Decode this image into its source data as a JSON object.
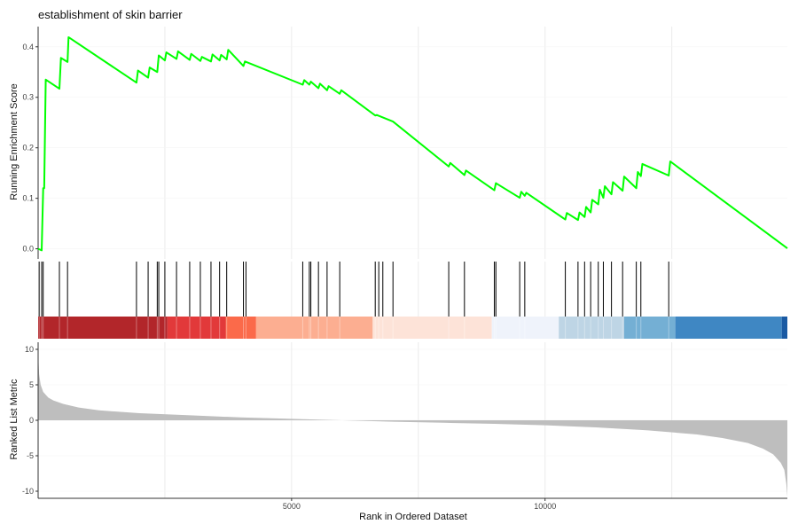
{
  "chart_data": {
    "type": "line",
    "title": "establishment of skin barrier",
    "xlabel": "Rank in Ordered Dataset",
    "xlim": [
      0,
      14780
    ],
    "x_ticks": [
      {
        "value": 5000,
        "label": "5000"
      },
      {
        "value": 10000,
        "label": "10000"
      }
    ],
    "grid": true,
    "enrichment_panel": {
      "ylabel": "Running Enrichment Score",
      "ylim": [
        -0.02,
        0.44
      ],
      "y_ticks": [
        {
          "value": 0.0,
          "label": "0.0"
        },
        {
          "value": 0.1,
          "label": "0.1"
        },
        {
          "value": 0.2,
          "label": "0.2"
        },
        {
          "value": 0.3,
          "label": "0.3"
        },
        {
          "value": 0.4,
          "label": "0.4"
        }
      ],
      "line_color": "#00ff00",
      "x": [
        0,
        70,
        100,
        120,
        150,
        420,
        450,
        580,
        600,
        1940,
        1970,
        2170,
        2200,
        2350,
        2380,
        2500,
        2530,
        2730,
        2760,
        2990,
        3020,
        3200,
        3230,
        3410,
        3440,
        3580,
        3610,
        3720,
        3750,
        4050,
        4080,
        5220,
        5250,
        5350,
        5380,
        5530,
        5560,
        5700,
        5730,
        5950,
        5980,
        6650,
        6680,
        7000,
        8100,
        8130,
        8410,
        8440,
        9000,
        9030,
        9500,
        9530,
        9600,
        9630,
        10400,
        10430,
        10650,
        10680,
        10780,
        10810,
        10900,
        10930,
        11050,
        11080,
        11150,
        11180,
        11310,
        11340,
        11530,
        11560,
        11800,
        11830,
        11890,
        11920,
        12440,
        12470,
        14780
      ],
      "y": [
        0.0,
        -0.003,
        0.12,
        0.12,
        0.335,
        0.317,
        0.378,
        0.37,
        0.419,
        0.329,
        0.353,
        0.339,
        0.359,
        0.35,
        0.383,
        0.373,
        0.389,
        0.376,
        0.391,
        0.374,
        0.386,
        0.372,
        0.38,
        0.371,
        0.385,
        0.373,
        0.384,
        0.375,
        0.394,
        0.362,
        0.371,
        0.325,
        0.334,
        0.325,
        0.331,
        0.318,
        0.327,
        0.314,
        0.322,
        0.307,
        0.314,
        0.264,
        0.265,
        0.252,
        0.163,
        0.17,
        0.146,
        0.155,
        0.116,
        0.13,
        0.101,
        0.113,
        0.105,
        0.111,
        0.058,
        0.071,
        0.057,
        0.072,
        0.063,
        0.083,
        0.072,
        0.097,
        0.088,
        0.117,
        0.101,
        0.124,
        0.108,
        0.132,
        0.115,
        0.143,
        0.12,
        0.152,
        0.144,
        0.168,
        0.145,
        0.173,
        0.001
      ]
    },
    "rug_panel": {
      "hit_ranks": [
        20,
        70,
        100,
        420,
        580,
        1940,
        2170,
        2350,
        2380,
        2500,
        2730,
        2990,
        3200,
        3410,
        3580,
        3720,
        4050,
        4100,
        5220,
        5350,
        5380,
        5530,
        5700,
        5950,
        6650,
        6720,
        6800,
        7000,
        8100,
        8410,
        9000,
        9030,
        9500,
        9600,
        10400,
        10650,
        10780,
        10900,
        11050,
        11150,
        11310,
        11530,
        11800,
        11890,
        12440
      ],
      "color_bands": [
        {
          "start": 0,
          "end": 2550,
          "color": "#b2262a"
        },
        {
          "start": 2550,
          "end": 3700,
          "color": "#e2393a"
        },
        {
          "start": 3700,
          "end": 4300,
          "color": "#fb6a4a"
        },
        {
          "start": 4300,
          "end": 6600,
          "color": "#fcae91"
        },
        {
          "start": 6600,
          "end": 8950,
          "color": "#fde3d8"
        },
        {
          "start": 8950,
          "end": 10270,
          "color": "#eff3fb"
        },
        {
          "start": 10270,
          "end": 11560,
          "color": "#bed5e5"
        },
        {
          "start": 11560,
          "end": 12570,
          "color": "#74afd4"
        },
        {
          "start": 12570,
          "end": 14670,
          "color": "#3f87c3"
        },
        {
          "start": 14670,
          "end": 14780,
          "color": "#1a5aa3"
        }
      ]
    },
    "ranked_panel": {
      "ylabel": "Ranked List Metric",
      "ylim": [
        -11,
        11
      ],
      "y_ticks": [
        {
          "value": 10,
          "label": "10"
        },
        {
          "value": 5,
          "label": "5"
        },
        {
          "value": 0,
          "label": "0"
        },
        {
          "value": -5,
          "label": "-5"
        },
        {
          "value": -10,
          "label": "-10"
        }
      ],
      "fill_color": "#bebebe",
      "x": [
        0,
        20,
        50,
        100,
        200,
        300,
        500,
        800,
        1200,
        2000,
        3000,
        4000,
        5000,
        6000,
        7000,
        8000,
        9000,
        10000,
        11000,
        12000,
        13000,
        13500,
        14000,
        14300,
        14500,
        14650,
        14720,
        14760,
        14780
      ],
      "y": [
        9.5,
        6.5,
        5.0,
        4.0,
        3.2,
        2.8,
        2.3,
        1.8,
        1.4,
        1.0,
        0.7,
        0.4,
        0.2,
        0.0,
        -0.2,
        -0.35,
        -0.5,
        -0.7,
        -1.0,
        -1.4,
        -2.0,
        -2.5,
        -3.2,
        -4.0,
        -4.8,
        -6.0,
        -7.0,
        -9.0,
        -10.8
      ]
    }
  }
}
